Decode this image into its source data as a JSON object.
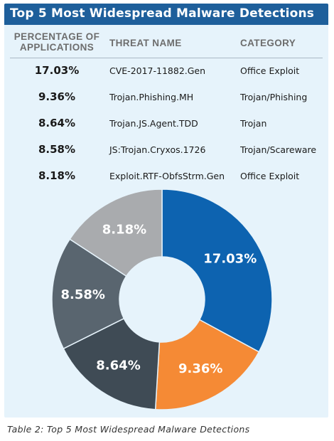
{
  "title": "Top 5 Most Widespread Malware Detections",
  "table": {
    "headers": {
      "percentage": [
        "PERCENTAGE OF",
        "APPLICATIONS"
      ],
      "threat": "THREAT NAME",
      "category": "CATEGORY"
    },
    "rows": [
      {
        "pct": "17.03%",
        "threat": "CVE-2017-11882.Gen",
        "category": "Office Exploit"
      },
      {
        "pct": "9.36%",
        "threat": "Trojan.Phishing.MH",
        "category": "Trojan/Phishing"
      },
      {
        "pct": "8.64%",
        "threat": "Trojan.JS.Agent.TDD",
        "category": "Trojan"
      },
      {
        "pct": "8.58%",
        "threat": "JS:Trojan.Cryxos.1726",
        "category": "Trojan/Scareware"
      },
      {
        "pct": "8.18%",
        "threat": "Exploit.RTF-ObfsStrm.Gen",
        "category": "Office Exploit"
      }
    ]
  },
  "chart_data": {
    "type": "pie",
    "style": "donut",
    "categories": [
      "CVE-2017-11882.Gen",
      "Trojan.Phishing.MH",
      "Trojan.JS.Agent.TDD",
      "JS:Trojan.Cryxos.1726",
      "Exploit.RTF-ObfsStrm.Gen"
    ],
    "values": [
      17.03,
      9.36,
      8.64,
      8.58,
      8.18
    ],
    "labels": [
      "17.03%",
      "9.36%",
      "8.64%",
      "8.58%",
      "8.18%"
    ],
    "colors": [
      "#0d63b0",
      "#f58a35",
      "#3f4b55",
      "#59656f",
      "#a9abae"
    ],
    "title": "",
    "legend": "none"
  },
  "caption": "Table 2: Top 5 Most Widespread Malware Detections"
}
